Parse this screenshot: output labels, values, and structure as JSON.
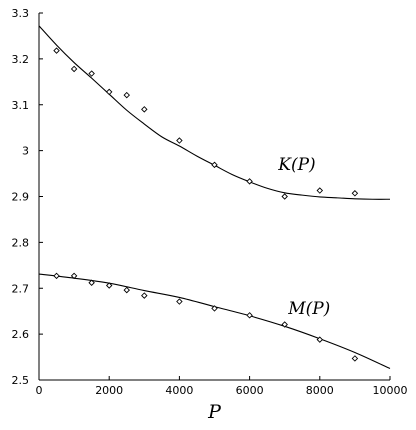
{
  "chart_data": {
    "type": "scatter",
    "title": "",
    "xlabel": "P",
    "ylabel": "",
    "xlim": [
      0,
      10000
    ],
    "ylim": [
      2.5,
      3.3
    ],
    "grid": false,
    "legend": "none",
    "x_ticks": [
      {
        "value": 0,
        "label": "0"
      },
      {
        "value": 2000,
        "label": "2000"
      },
      {
        "value": 4000,
        "label": "4000"
      },
      {
        "value": 6000,
        "label": "6000"
      },
      {
        "value": 8000,
        "label": "8000"
      },
      {
        "value": 10000,
        "label": "10000"
      }
    ],
    "y_ticks": [
      {
        "value": 2.5,
        "label": "2.5"
      },
      {
        "value": 2.6,
        "label": "2.6"
      },
      {
        "value": 2.7,
        "label": "2.7"
      },
      {
        "value": 2.8,
        "label": "2.8"
      },
      {
        "value": 2.9,
        "label": "2.9"
      },
      {
        "value": 3.0,
        "label": "3"
      },
      {
        "value": 3.1,
        "label": "3.1"
      },
      {
        "value": 3.2,
        "label": "3.2"
      },
      {
        "value": 3.3,
        "label": "3.3"
      }
    ],
    "series": [
      {
        "name": "K(P)",
        "label": "K(P)",
        "label_at": {
          "x": 7350,
          "y": 2.958
        },
        "marker": "diamond-open",
        "points": {
          "x": [
            500,
            1000,
            1500,
            2000,
            2500,
            3000,
            4000,
            5000,
            6000,
            7000,
            8000,
            9000
          ],
          "y": [
            3.218,
            3.178,
            3.168,
            3.128,
            3.121,
            3.09,
            3.022,
            2.969,
            2.933,
            2.9,
            2.913,
            2.907
          ]
        },
        "fit": {
          "x": [
            0,
            500,
            1000,
            1500,
            2000,
            2500,
            3000,
            3500,
            4000,
            4500,
            5000,
            5500,
            6000,
            6500,
            7000,
            7500,
            8000,
            8500,
            9000,
            9500,
            10000
          ],
          "y": [
            3.272,
            3.23,
            3.192,
            3.158,
            3.123,
            3.088,
            3.058,
            3.03,
            3.01,
            2.988,
            2.968,
            2.948,
            2.932,
            2.918,
            2.908,
            2.903,
            2.899,
            2.897,
            2.895,
            2.894,
            2.894
          ]
        }
      },
      {
        "name": "M(P)",
        "label": "M(P)",
        "label_at": {
          "x": 7700,
          "y": 2.644
        },
        "marker": "diamond-open",
        "points": {
          "x": [
            500,
            1000,
            1500,
            2000,
            2500,
            3000,
            4000,
            5000,
            6000,
            7000,
            8000,
            9000
          ],
          "y": [
            2.727,
            2.727,
            2.712,
            2.706,
            2.696,
            2.684,
            2.671,
            2.656,
            2.641,
            2.621,
            2.588,
            2.547
          ]
        },
        "fit": {
          "x": [
            0,
            1000,
            2000,
            3000,
            4000,
            5000,
            6000,
            7000,
            8000,
            9000,
            10000
          ],
          "y": [
            2.731,
            2.722,
            2.711,
            2.695,
            2.68,
            2.66,
            2.64,
            2.617,
            2.59,
            2.56,
            2.525
          ]
        }
      }
    ]
  }
}
